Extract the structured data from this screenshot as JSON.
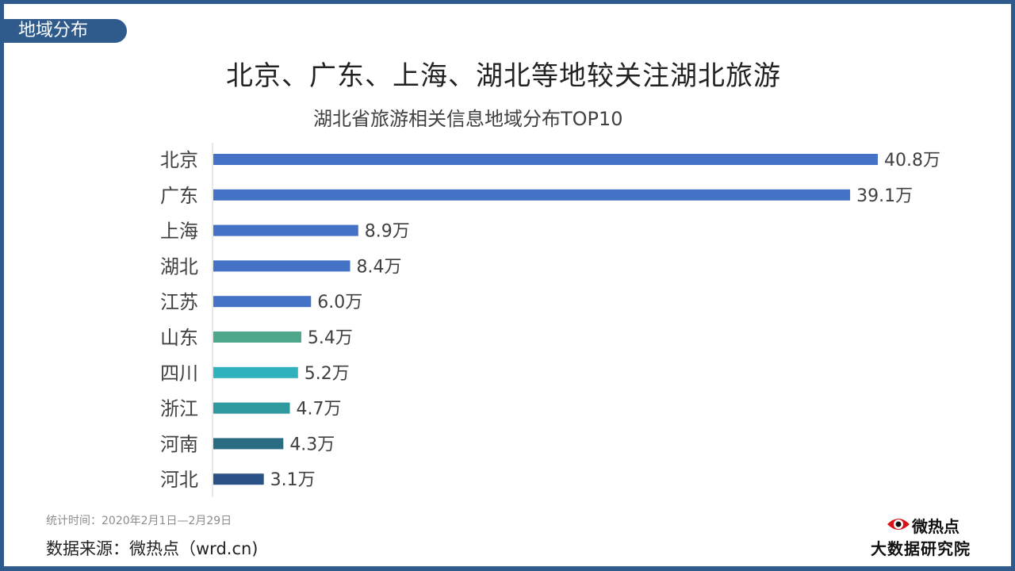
{
  "section_tab": "地域分布",
  "main_title": "北京、广东、上海、湖北等地较关注湖北旅游",
  "period": "统计时间：2020年2月1日—2月29日",
  "source": "数据来源：微热点（wrd.cn)",
  "logo": {
    "brand": "微热点",
    "org": "大数据研究院",
    "icon": "eye-logo-icon"
  },
  "chart_data": {
    "type": "bar",
    "orientation": "horizontal",
    "title": "湖北省旅游相关信息地域分布TOP10",
    "xlabel": "",
    "ylabel": "",
    "unit": "万",
    "categories": [
      "北京",
      "广东",
      "上海",
      "湖北",
      "江苏",
      "山东",
      "四川",
      "浙江",
      "河南",
      "河北"
    ],
    "values": [
      40.8,
      39.1,
      8.9,
      8.4,
      6.0,
      5.4,
      5.2,
      4.7,
      4.3,
      3.1
    ],
    "labels": [
      "40.8万",
      "39.1万",
      "8.9万",
      "8.4万",
      "6.0万",
      "5.4万",
      "5.2万",
      "4.7万",
      "4.3万",
      "3.1万"
    ],
    "colors": [
      "#4472c4",
      "#4472c4",
      "#4472c4",
      "#4472c4",
      "#4472c4",
      "#4ea68b",
      "#30b2be",
      "#2e9aa0",
      "#2a6d82",
      "#2a5286"
    ],
    "xlim": [
      0,
      40.8
    ],
    "grid": false,
    "legend": "none"
  }
}
